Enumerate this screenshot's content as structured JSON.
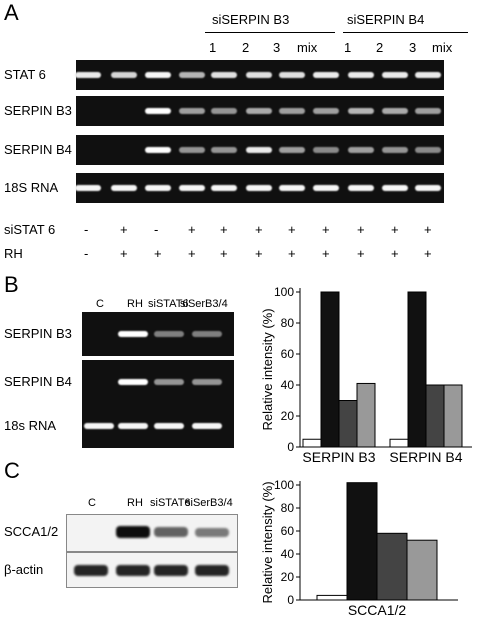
{
  "panelA": {
    "letter": "A",
    "group_b3": "siSERPIN B3",
    "group_b4": "siSERPIN B4",
    "sub_labels_b3": [
      "1",
      "2",
      "3",
      "mix"
    ],
    "sub_labels_b4": [
      "1",
      "2",
      "3",
      "mix"
    ],
    "rows": [
      {
        "label": "STAT 6",
        "bands": [
          0.85,
          0.75,
          0.9,
          0.6,
          0.8,
          0.8,
          0.8,
          0.85,
          0.85,
          0.85,
          0.85
        ]
      },
      {
        "label": "SERPIN B3",
        "bands": [
          0,
          0,
          0.95,
          0.5,
          0.45,
          0.55,
          0.5,
          0.5,
          0.6,
          0.55,
          0.5
        ]
      },
      {
        "label": "SERPIN B4",
        "bands": [
          0,
          0,
          1.0,
          0.45,
          0.45,
          0.85,
          0.5,
          0.4,
          0.5,
          0.45,
          0.4
        ]
      },
      {
        "label": "18S RNA",
        "bands": [
          0.9,
          0.9,
          0.9,
          0.9,
          0.9,
          0.9,
          0.9,
          0.9,
          0.9,
          0.9,
          0.9
        ]
      }
    ],
    "treatment_rows": [
      {
        "label": "siSTAT 6",
        "signs": [
          "-",
          "+",
          "-",
          "+",
          "+",
          "+",
          "+",
          "+",
          "+",
          "+",
          "+"
        ]
      },
      {
        "label": "RH",
        "signs": [
          "-",
          "+",
          "+",
          "+",
          "+",
          "+",
          "+",
          "+",
          "+",
          "+",
          "+"
        ]
      }
    ]
  },
  "panelB": {
    "letter": "B",
    "lane_labels": [
      "C",
      "RH",
      "siSTAT6",
      "siSerB3/4"
    ],
    "rows": [
      {
        "label": "SERPIN B3",
        "bands": [
          0,
          1.0,
          0.35,
          0.35
        ]
      },
      {
        "label": "SERPIN B4",
        "bands": [
          0,
          1.0,
          0.45,
          0.45
        ]
      },
      {
        "label": "18s RNA",
        "bands": [
          0.9,
          0.9,
          0.9,
          0.9
        ]
      }
    ]
  },
  "panelC": {
    "letter": "C",
    "lane_labels": [
      "C",
      "RH",
      "siSTAT6",
      "siSerB3/4"
    ],
    "rows": [
      {
        "label": "SCCA1/2",
        "bands": [
          0,
          1.0,
          0.65,
          0.55
        ]
      },
      {
        "label": "β-actin",
        "bands": [
          0.9,
          0.9,
          0.9,
          0.9
        ]
      }
    ]
  },
  "chart_data": [
    {
      "type": "bar",
      "ylabel": "Relative intensity (%)",
      "ylim": [
        0,
        100
      ],
      "yticks": [
        "0",
        "20",
        "40",
        "60",
        "80",
        "100"
      ],
      "categories": [
        "SERPIN B3",
        "SERPIN B4"
      ],
      "series": [
        {
          "values": [
            5,
            5
          ]
        },
        {
          "values": [
            100,
            100
          ]
        },
        {
          "values": [
            30,
            40
          ]
        },
        {
          "values": [
            41,
            40
          ]
        }
      ],
      "series_colors": [
        "#ffffff",
        "#111111",
        "#444444",
        "#999999"
      ]
    },
    {
      "type": "bar",
      "ylabel": "Relative intensity (%)",
      "ylim": [
        0,
        100
      ],
      "yticks": [
        "0",
        "20",
        "40",
        "60",
        "80",
        "100"
      ],
      "categories": [
        "SCCA1/2"
      ],
      "series": [
        {
          "values": [
            4
          ]
        },
        {
          "values": [
            102
          ]
        },
        {
          "values": [
            58
          ]
        },
        {
          "values": [
            52
          ]
        }
      ],
      "series_colors": [
        "#ffffff",
        "#111111",
        "#444444",
        "#999999"
      ]
    }
  ]
}
